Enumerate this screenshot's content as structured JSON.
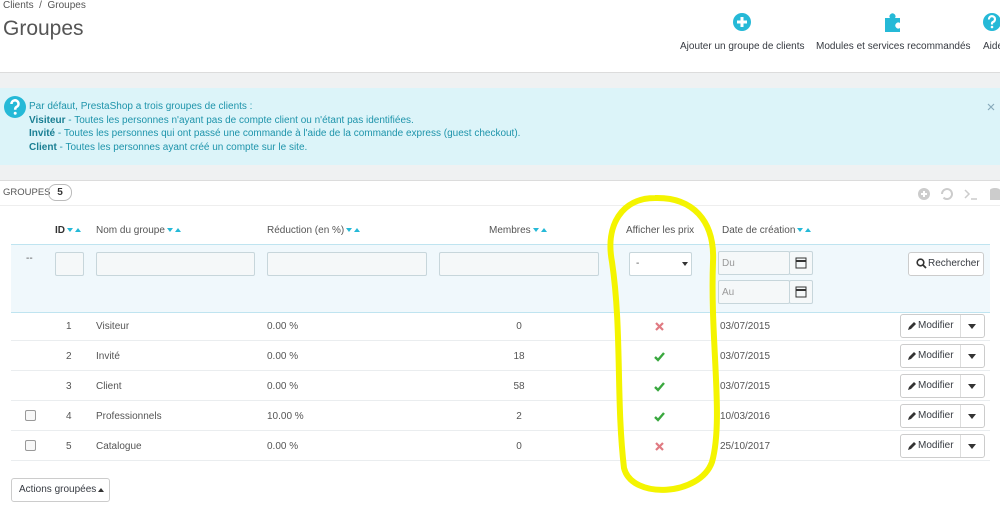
{
  "breadcrumb": [
    "Clients",
    "Groupes"
  ],
  "header": {
    "title": "Groupes",
    "actions": [
      "Ajouter un groupe de clients",
      "Modules et services recommandés",
      "Aide"
    ]
  },
  "alert": {
    "intro": "Par défaut, PrestaShop a trois groupes de clients :",
    "items": [
      {
        "name": "Visiteur",
        "text": " - Toutes les personnes n'ayant pas de compte client ou n'étant pas identifiées."
      },
      {
        "name": "Invité",
        "text": " - Toutes les personnes qui ont passé une commande à l'aide de la commande express (guest checkout)."
      },
      {
        "name": "Client",
        "text": " - Toutes les personnes ayant créé un compte sur le site."
      }
    ]
  },
  "panel": {
    "title": "GROUPES",
    "count": 5
  },
  "table": {
    "columns": [
      "ID",
      "Nom du groupe",
      "Réduction (en %)",
      "Membres",
      "Afficher les prix",
      "Date de création"
    ],
    "filter": {
      "reset": "--",
      "select": "-",
      "date_from": "Du",
      "date_to": "Au",
      "search": "Rechercher"
    },
    "row_action": "Modifier",
    "rows": [
      {
        "id": 1,
        "name": "Visiteur",
        "reduction": "0.00 %",
        "members": 0,
        "show_prices": false,
        "date": "03/07/2015",
        "checkbox": false
      },
      {
        "id": 2,
        "name": "Invité",
        "reduction": "0.00 %",
        "members": 18,
        "show_prices": true,
        "date": "03/07/2015",
        "checkbox": false
      },
      {
        "id": 3,
        "name": "Client",
        "reduction": "0.00 %",
        "members": 58,
        "show_prices": true,
        "date": "03/07/2015",
        "checkbox": false
      },
      {
        "id": 4,
        "name": "Professionnels",
        "reduction": "10.00 %",
        "members": 2,
        "show_prices": true,
        "date": "10/03/2016",
        "checkbox": true
      },
      {
        "id": 5,
        "name": "Catalogue",
        "reduction": "0.00 %",
        "members": 0,
        "show_prices": false,
        "date": "25/10/2017",
        "checkbox": true
      }
    ]
  },
  "bulk_actions": "Actions groupées"
}
